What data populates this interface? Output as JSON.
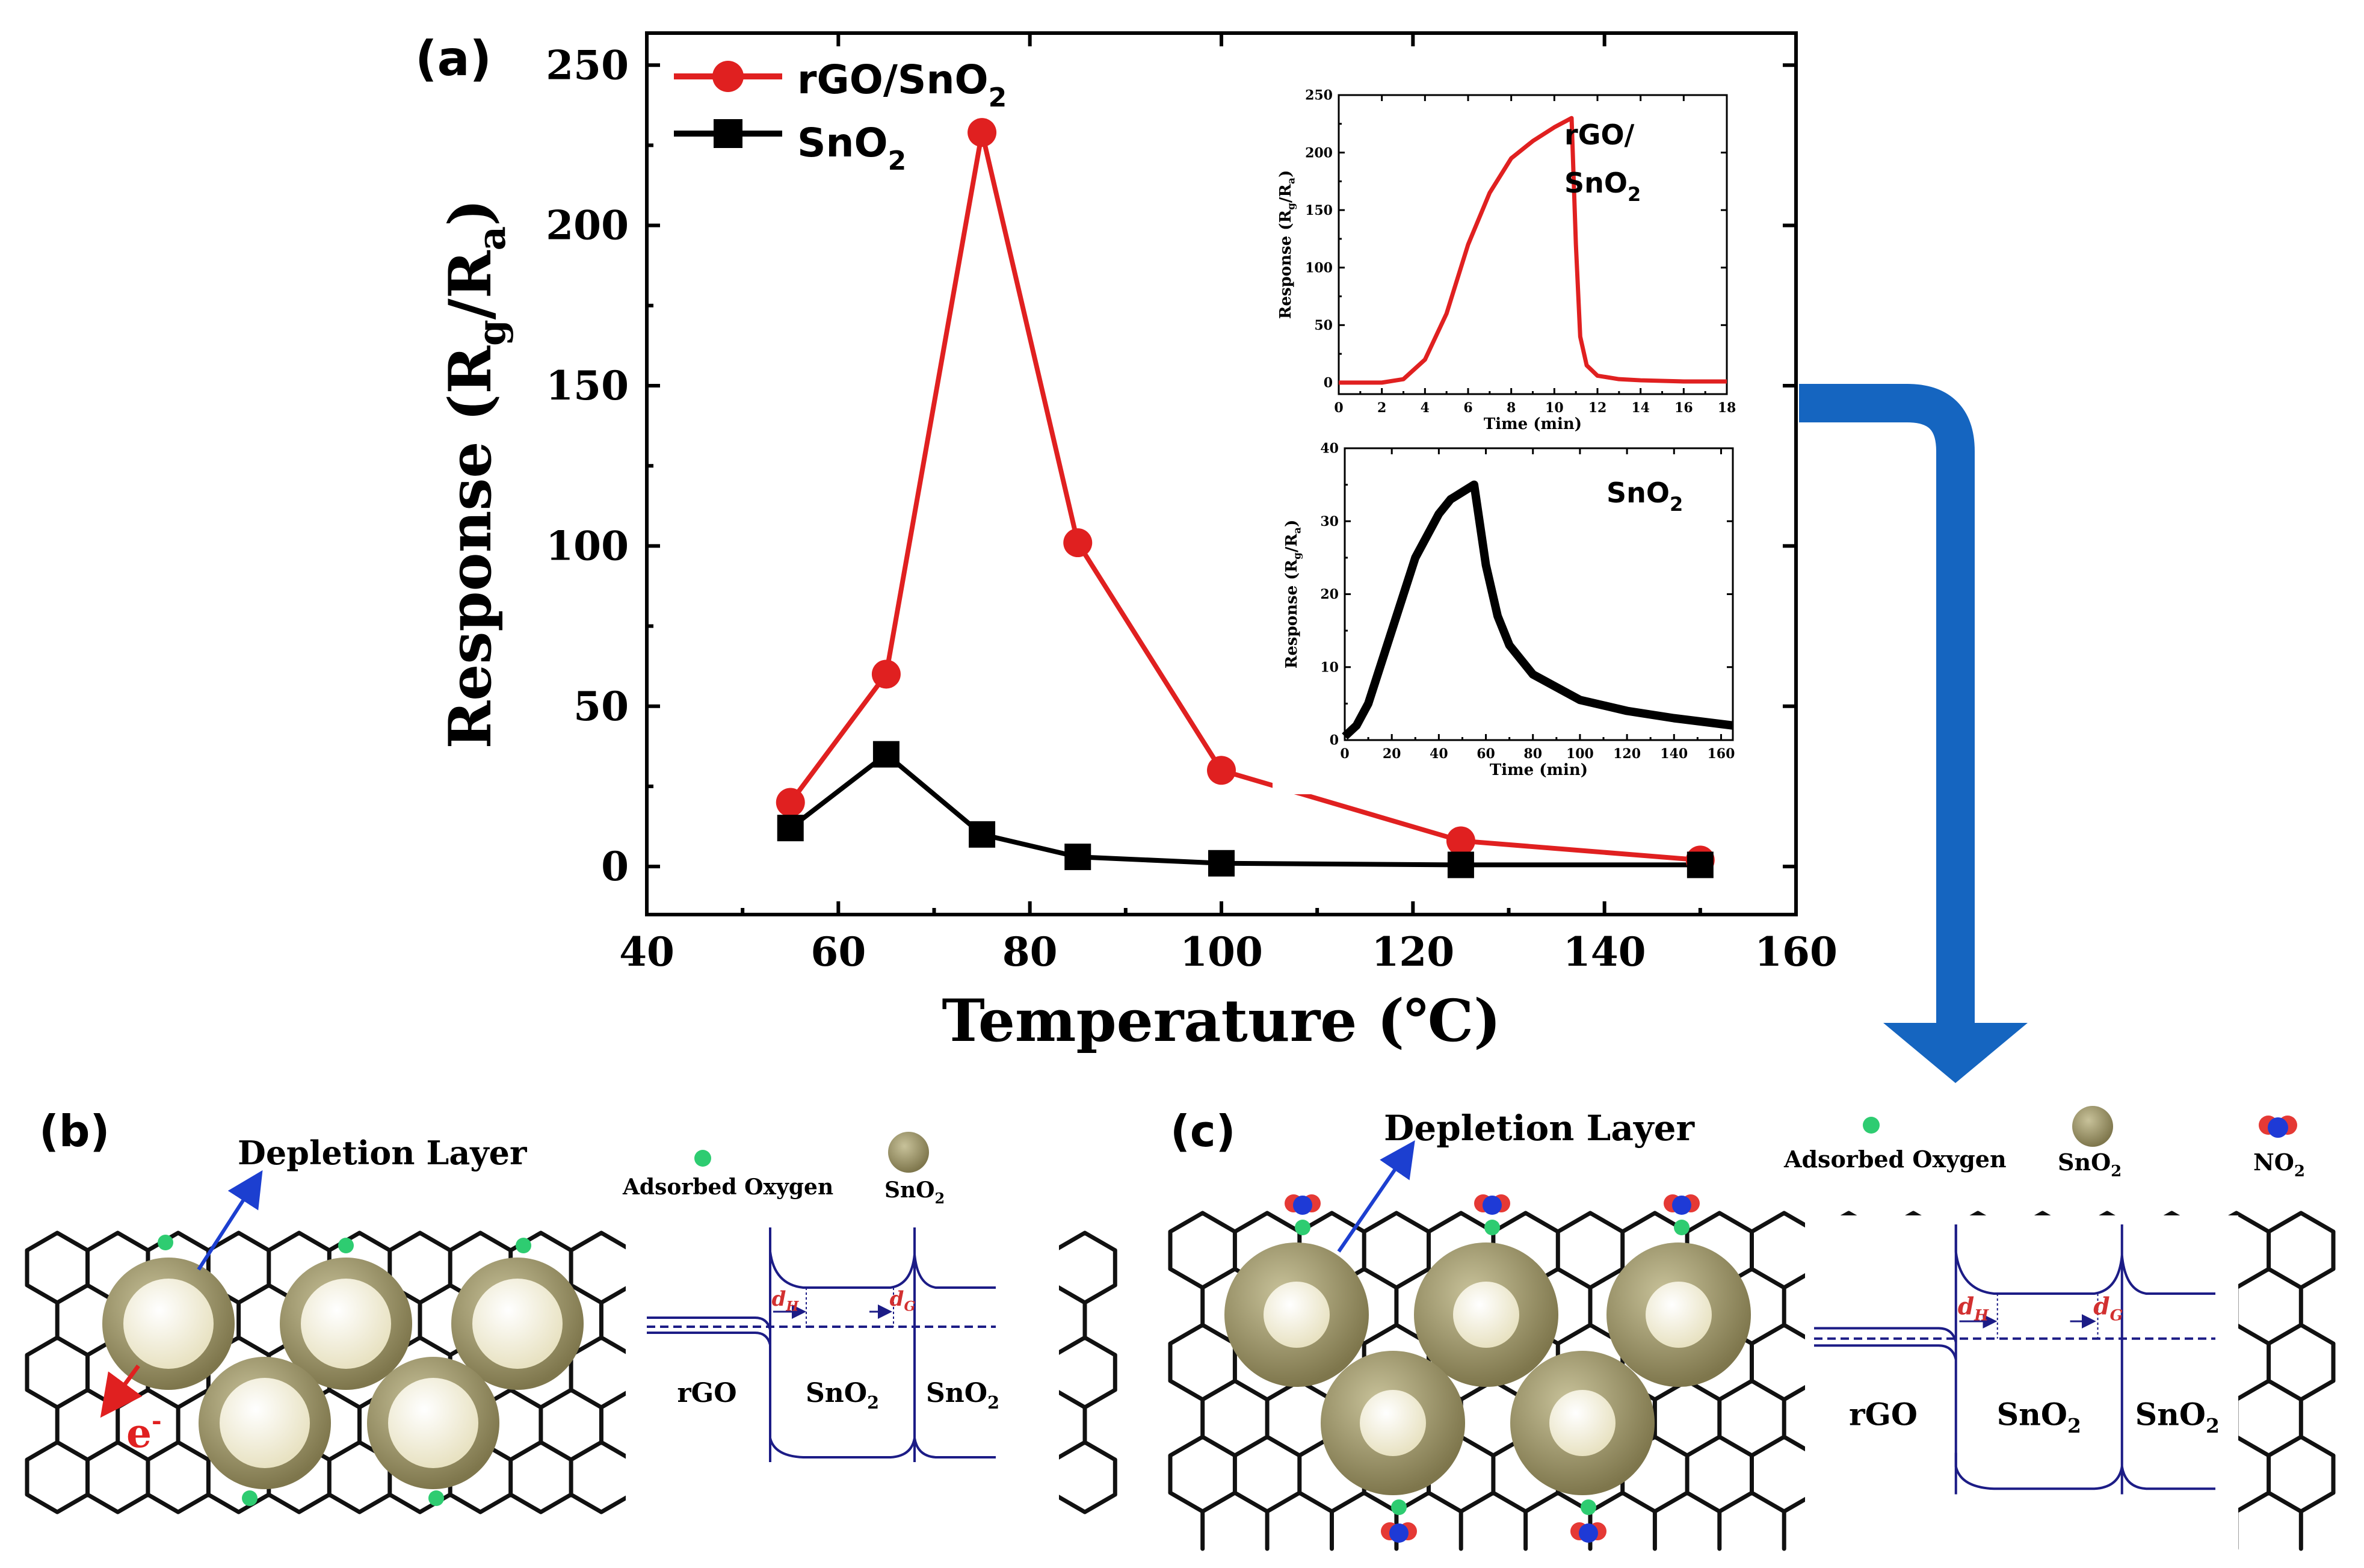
{
  "colors": {
    "rgo": "#e02020",
    "sno2": "#000000",
    "band": "#1c1c86",
    "arrow": "#1565c0",
    "shell": "#9a9268",
    "core": "#f4f0dc",
    "oxygen": "#2ecc71",
    "no2_n": "#1e3ad6",
    "no2_o": "#e53935",
    "dim": "#d23030"
  },
  "chart_data": [
    {
      "panel": "(a)",
      "type": "line",
      "xlabel": "Temperature (℃)",
      "ylabel_main": "Response (R",
      "ylabel_sub_g": "g",
      "ylabel_slash": "/R",
      "ylabel_sub_a": "a",
      "ylabel_close": ")",
      "xlim": [
        40,
        160
      ],
      "ylim": [
        -15,
        260
      ],
      "xticks": [
        "40",
        "60",
        "80",
        "100",
        "120",
        "140",
        "160"
      ],
      "yticks": [
        "0",
        "50",
        "100",
        "150",
        "200",
        "250"
      ],
      "legend_position": "top-left",
      "series": [
        {
          "name": "rGO/SnO2",
          "legend_main": "rGO/SnO",
          "legend_sub": "2",
          "marker": "circle",
          "x": [
            55,
            65,
            75,
            85,
            100,
            125,
            150
          ],
          "y": [
            20,
            60,
            229,
            101,
            30,
            8,
            2
          ]
        },
        {
          "name": "SnO2",
          "legend_main": "SnO",
          "legend_sub": "2",
          "marker": "square",
          "x": [
            55,
            65,
            75,
            85,
            100,
            125,
            150
          ],
          "y": [
            12,
            35,
            10,
            3,
            1,
            0.5,
            0.5
          ]
        }
      ]
    },
    {
      "panel": "inset-top",
      "type": "line",
      "xlabel": "Time (min)",
      "ylabel_main": "Response (R",
      "ylabel_sub_g": "g",
      "ylabel_slash": "/R",
      "ylabel_sub_a": "a",
      "ylabel_close": ")",
      "xlim": [
        0,
        18
      ],
      "ylim": [
        -10,
        250
      ],
      "xticks": [
        "0",
        "2",
        "4",
        "6",
        "8",
        "10",
        "12",
        "14",
        "16",
        "18"
      ],
      "yticks": [
        "0",
        "50",
        "100",
        "150",
        "200",
        "250"
      ],
      "label_line1": "rGO/",
      "label_line2_main": "SnO",
      "label_line2_sub": "2",
      "series": [
        {
          "name": "rGO/SnO2",
          "x": [
            0,
            2,
            3,
            4,
            5,
            6,
            7,
            8,
            9,
            10,
            10.8,
            11,
            11.2,
            11.5,
            12,
            13,
            14,
            16,
            18
          ],
          "y": [
            0,
            0,
            3,
            20,
            60,
            120,
            165,
            195,
            210,
            222,
            230,
            120,
            40,
            15,
            6,
            3,
            2,
            1,
            1
          ]
        }
      ]
    },
    {
      "panel": "inset-bottom",
      "type": "line",
      "xlabel": "Time (min)",
      "ylabel_main": "Response (R",
      "ylabel_sub_g": "g",
      "ylabel_slash": "/R",
      "ylabel_sub_a": "a",
      "ylabel_close": ")",
      "xlim": [
        0,
        165
      ],
      "ylim": [
        0,
        40
      ],
      "xticks": [
        "0",
        "20",
        "40",
        "60",
        "80",
        "100",
        "120",
        "140",
        "160"
      ],
      "yticks": [
        "0",
        "10",
        "20",
        "30",
        "40"
      ],
      "label_main": "SnO",
      "label_sub": "2",
      "series": [
        {
          "name": "SnO2",
          "x": [
            0,
            5,
            10,
            20,
            30,
            40,
            45,
            50,
            55,
            60,
            65,
            70,
            80,
            100,
            120,
            140,
            165
          ],
          "y": [
            0.5,
            2,
            5,
            15,
            25,
            31,
            33,
            34,
            35,
            24,
            17,
            13,
            9,
            5.5,
            4,
            3,
            2
          ]
        }
      ]
    }
  ],
  "panel_a_label": "(a)",
  "panel_b": {
    "label": "(b)",
    "depletion_layer": "Depletion Layer",
    "electron": "e",
    "electron_sup": "-",
    "legend_oxygen": "Adsorbed Oxygen",
    "legend_sno2_main": "SnO",
    "legend_sno2_sub": "2",
    "d_h_main": "d",
    "d_h_sub": "H",
    "d_g_main": "d",
    "d_g_sub": "G",
    "band_rgo": "rGO",
    "band_sno2_a_main": "SnO",
    "band_sno2_a_sub": "2",
    "band_sno2_b_main": "SnO",
    "band_sno2_b_sub": "2"
  },
  "panel_c": {
    "label": "(c)",
    "depletion_layer": "Depletion Layer",
    "legend_oxygen": "Adsorbed Oxygen",
    "legend_sno2_main": "SnO",
    "legend_sno2_sub": "2",
    "legend_no2_main": "NO",
    "legend_no2_sub": "2",
    "d_h_main": "d",
    "d_h_sub": "H",
    "d_g_main": "d",
    "d_g_sub": "G",
    "band_rgo": "rGO",
    "band_sno2_a_main": "SnO",
    "band_sno2_a_sub": "2",
    "band_sno2_b_main": "SnO",
    "band_sno2_b_sub": "2"
  }
}
